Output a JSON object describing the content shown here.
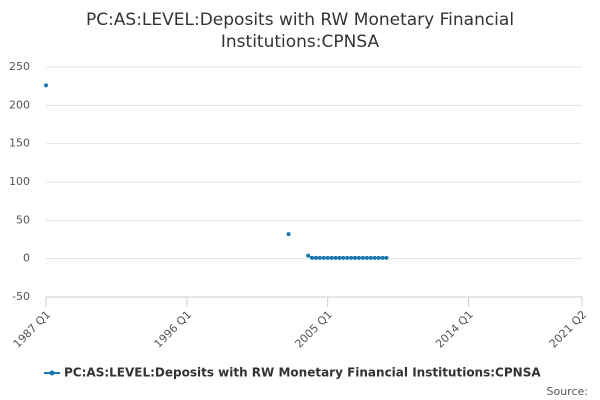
{
  "chart_data": {
    "type": "line",
    "title": "PC:AS:LEVEL:Deposits with RW Monetary Financial Institutions:CPNSA",
    "x": [
      "1987 Q1",
      "1987 Q2",
      "2002 Q3",
      "2002 Q4",
      "2003 Q4",
      "2004 Q1",
      "2004 Q2",
      "2004 Q3",
      "2004 Q4",
      "2005 Q1",
      "2005 Q2",
      "2005 Q3",
      "2005 Q4",
      "2006 Q1",
      "2006 Q2",
      "2006 Q3",
      "2006 Q4",
      "2007 Q1",
      "2007 Q2",
      "2007 Q3",
      "2007 Q4",
      "2008 Q1",
      "2008 Q2",
      "2008 Q3",
      "2008 Q4"
    ],
    "series": [
      {
        "name": "PC:AS:LEVEL:Deposits with RW Monetary Financial Institutions:CPNSA",
        "color": "#1a75b0",
        "values": [
          226,
          null,
          32,
          null,
          4,
          1,
          1,
          1,
          1,
          1,
          1,
          1,
          1,
          1,
          1,
          1,
          1,
          1,
          1,
          1,
          1,
          1,
          1,
          1,
          1
        ]
      }
    ],
    "xlim": [
      "1987 Q1",
      "2021 Q2"
    ],
    "xticks": [
      "1987 Q1",
      "1996 Q1",
      "2005 Q1",
      "2014 Q1",
      "2021 Q2"
    ],
    "ylim": [
      -50,
      250
    ],
    "yticks": [
      -50,
      0,
      50,
      100,
      150,
      200,
      250
    ],
    "grid": true,
    "legend": "bottom",
    "source": "Source:"
  }
}
